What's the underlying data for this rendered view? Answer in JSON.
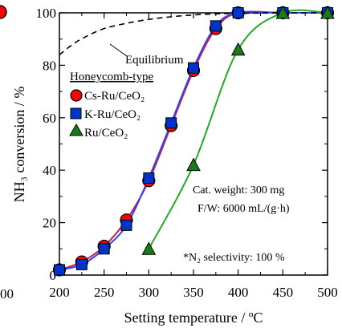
{
  "chart_data": {
    "type": "line",
    "xlabel": "Setting temperature / ºC",
    "ylabel": "NH₃ conversion / %",
    "xlim": [
      200,
      500
    ],
    "ylim": [
      0,
      100
    ],
    "x_ticks": [
      200,
      250,
      300,
      350,
      400,
      450,
      500
    ],
    "y_ticks": [
      0,
      20,
      40,
      60,
      80,
      100
    ],
    "grid": false,
    "legend": {
      "title": "Honeycomb-type",
      "placement": "upper-left",
      "entries": [
        "Cs-Ru/CeO₂",
        "K-Ru/CeO₂",
        "Ru/CeO₂"
      ]
    },
    "series": [
      {
        "name": "Cs-Ru/CeO₂",
        "marker": "circle",
        "color": "#ff0000",
        "line_color": "#cc1a40",
        "x": [
          200,
          225,
          250,
          275,
          300,
          325,
          350,
          375,
          400,
          450,
          500
        ],
        "y": [
          2,
          5,
          11,
          21,
          36,
          57,
          78,
          94,
          100,
          100,
          100
        ]
      },
      {
        "name": "K-Ru/CeO₂",
        "marker": "square",
        "color": "#0033cc",
        "line_color": "#3340ff",
        "x": [
          200,
          225,
          250,
          275,
          300,
          325,
          350,
          375,
          400,
          450,
          500
        ],
        "y": [
          2,
          4,
          10,
          19,
          37,
          58,
          79,
          95,
          100,
          100,
          100
        ]
      },
      {
        "name": "Ru/CeO₂",
        "marker": "triangle",
        "color": "#1a7a1a",
        "line_color": "#22aa22",
        "x": [
          300,
          350,
          400,
          450,
          500
        ],
        "y": [
          10,
          42,
          86,
          100,
          100
        ]
      },
      {
        "name": "Equilibrium",
        "style": "dashed",
        "color": "#000000",
        "x": [
          200,
          215,
          230,
          250,
          275,
          300,
          325,
          350,
          375,
          400,
          450,
          500
        ],
        "y": [
          84,
          88,
          91,
          94,
          96,
          97.5,
          98.5,
          99.2,
          99.6,
          99.8,
          100,
          100
        ]
      }
    ],
    "annotations": {
      "equilibrium_label": "Equilibrium",
      "cat_weight": "Cat. weight: 300 mg",
      "flow_rate": "F/W: 6000 mL/(g·h)",
      "selectivity": "*N₂ selectivity: 100 %"
    },
    "left_fragment": {
      "tick_label": "00"
    }
  }
}
